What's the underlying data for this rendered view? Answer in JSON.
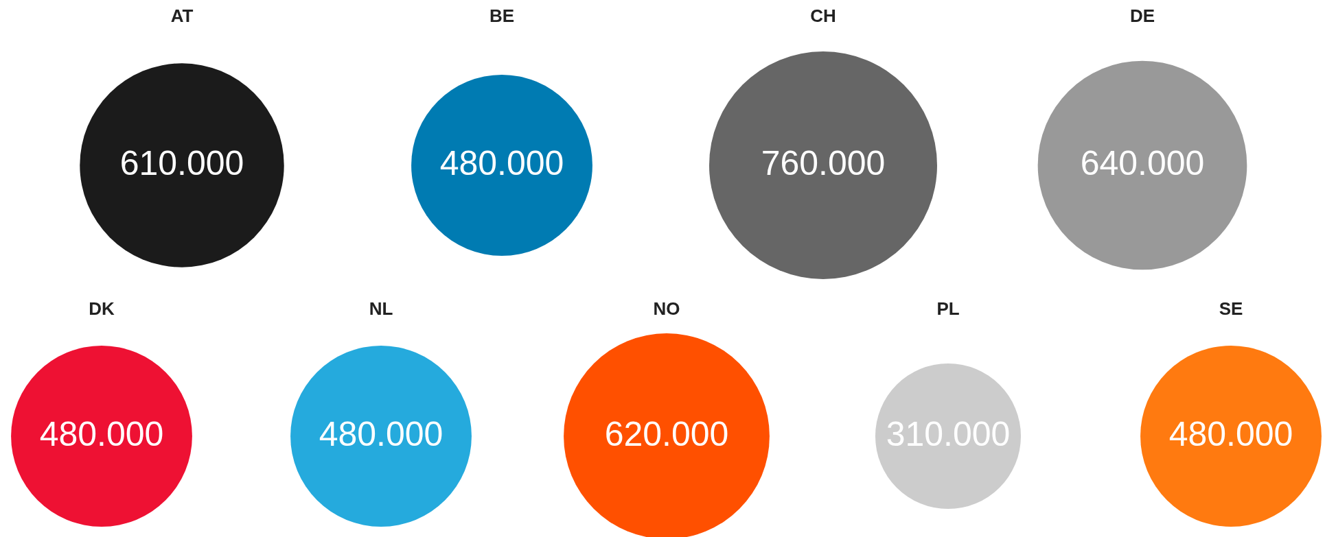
{
  "chart_data": {
    "type": "other",
    "categories": [
      "AT",
      "BE",
      "CH",
      "DE",
      "DK",
      "NL",
      "NO",
      "PL",
      "SE"
    ],
    "values": [
      610000,
      480000,
      760000,
      640000,
      480000,
      480000,
      620000,
      310000,
      480000
    ],
    "value_labels": [
      "610.000",
      "480.000",
      "760.000",
      "640.000",
      "480.000",
      "480.000",
      "620.000",
      "310.000",
      "480.000"
    ],
    "colors": [
      "#1b1b1b",
      "#007bb2",
      "#666666",
      "#999999",
      "#ee1133",
      "#25aadd",
      "#ff5000",
      "#cccccc",
      "#ff7a10"
    ]
  }
}
